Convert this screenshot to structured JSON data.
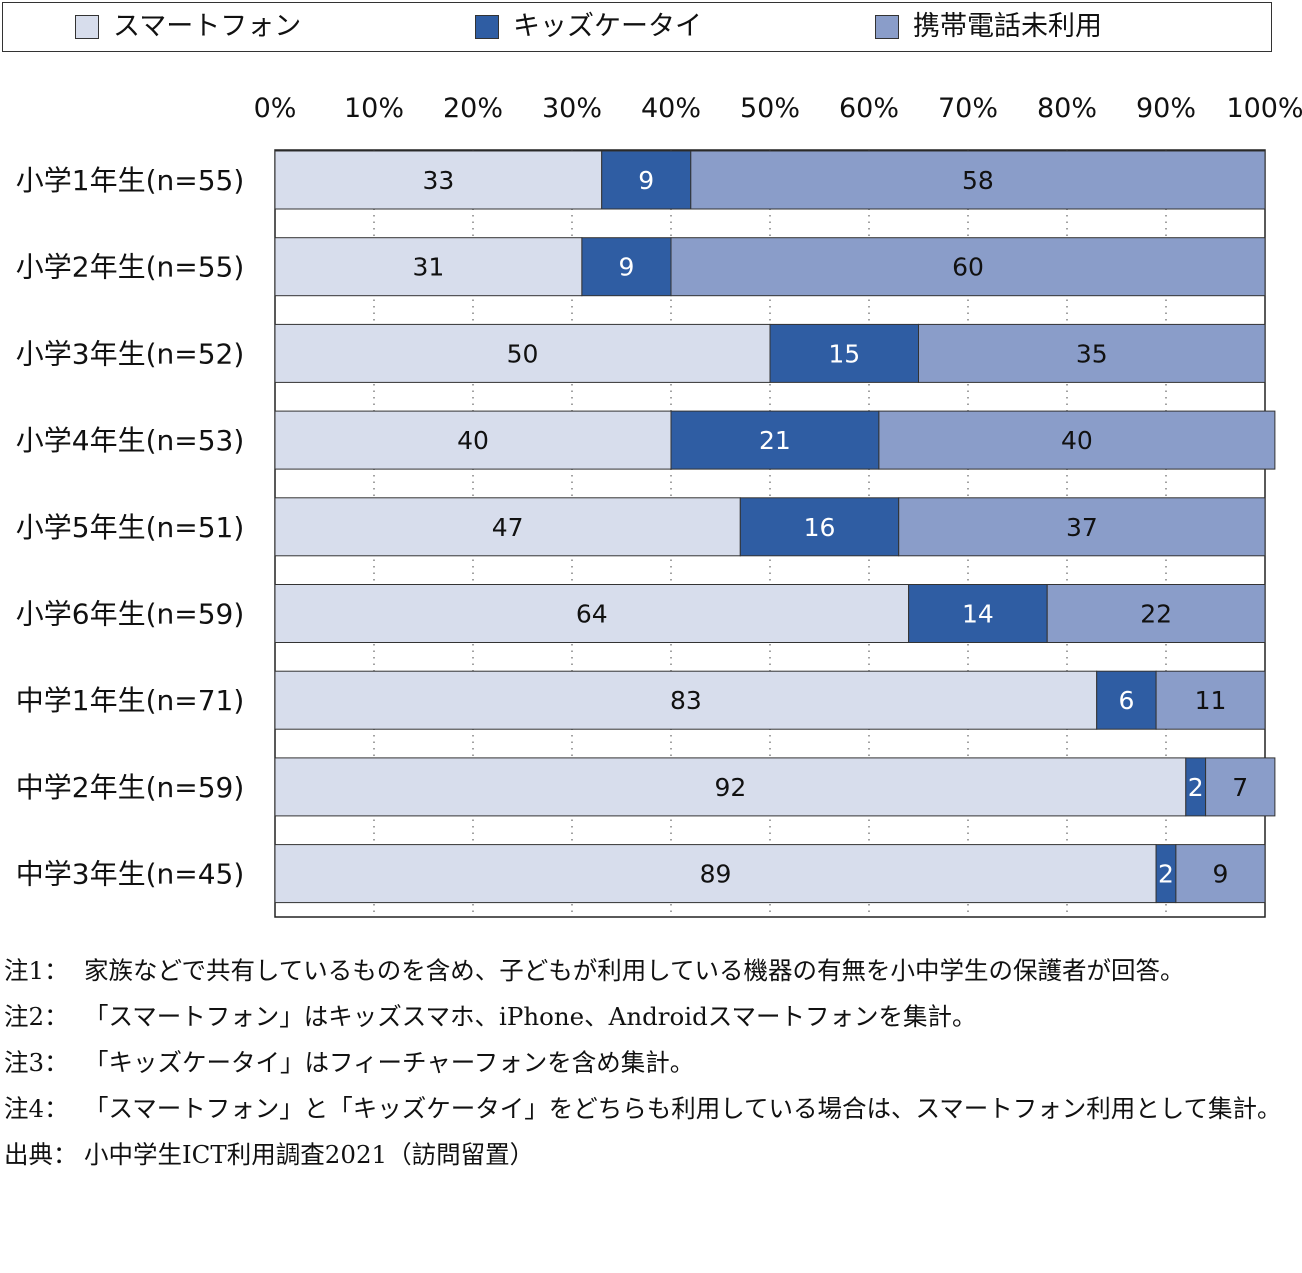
{
  "legend": {
    "smartphone": "スマートフォン",
    "kids": "キッズケータイ",
    "none": "携帯電話未利用"
  },
  "colors": {
    "smartphone": "#d7ddec",
    "kids": "#2f5da3",
    "none": "#8a9dc9"
  },
  "chart_data": {
    "type": "bar",
    "orientation": "horizontal",
    "stacked": true,
    "xlim": [
      0,
      100
    ],
    "x_ticks": [
      "0%",
      "10%",
      "20%",
      "30%",
      "40%",
      "50%",
      "60%",
      "70%",
      "80%",
      "90%",
      "100%"
    ],
    "categories": [
      "小学1年生(n=55)",
      "小学2年生(n=55)",
      "小学3年生(n=52)",
      "小学4年生(n=53)",
      "小学5年生(n=51)",
      "小学6年生(n=59)",
      "中学1年生(n=71)",
      "中学2年生(n=59)",
      "中学3年生(n=45)"
    ],
    "series": [
      {
        "name": "スマートフォン",
        "values": [
          33,
          31,
          50,
          40,
          47,
          64,
          83,
          92,
          89
        ]
      },
      {
        "name": "キッズケータイ",
        "values": [
          9,
          9,
          15,
          21,
          16,
          14,
          6,
          2,
          2
        ]
      },
      {
        "name": "携帯電話未利用",
        "values": [
          58,
          60,
          35,
          40,
          37,
          22,
          11,
          7,
          9
        ]
      }
    ],
    "grid": "vertical-dotted",
    "legend_position": "top"
  },
  "notes": [
    {
      "key": "注1：",
      "text": "家族などで共有しているものを含め、子どもが利用している機器の有無を小中学生の保護者が回答。"
    },
    {
      "key": "注2：",
      "text": "「スマートフォン」はキッズスマホ、iPhone、Androidスマートフォンを集計。"
    },
    {
      "key": "注3：",
      "text": "「キッズケータイ」はフィーチャーフォンを含め集計。"
    },
    {
      "key": "注4：",
      "text": "「スマートフォン」と「キッズケータイ」をどちらも利用している場合は、スマートフォン利用として集計。"
    },
    {
      "key": "出典：",
      "text": "小中学生ICT利用調査2021（訪問留置）"
    }
  ]
}
